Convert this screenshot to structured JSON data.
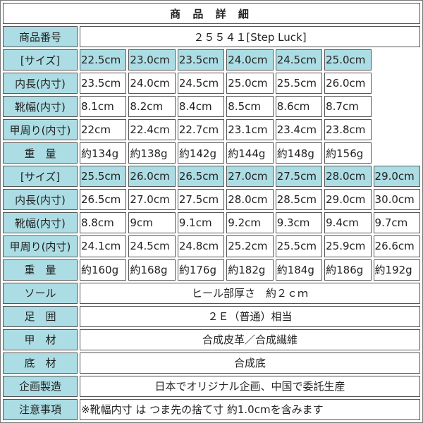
{
  "title": "商 品 詳 細",
  "product_number": {
    "label": "商品番号",
    "value": "２５５４１[Step Luck]"
  },
  "colors": {
    "header_bg": "#acdde4",
    "border": "#555555"
  },
  "size_blocks": [
    {
      "rows": [
        {
          "label": "[サイズ]",
          "type": "size",
          "values": [
            "22.5cm",
            "23.0cm",
            "23.5cm",
            "24.0cm",
            "24.5cm",
            "25.0cm"
          ]
        },
        {
          "label": "内長(内寸)",
          "values": [
            "23.5cm",
            "24.0cm",
            "24.5cm",
            "25.0cm",
            "25.5cm",
            "26.0cm"
          ]
        },
        {
          "label": "靴幅(内寸)",
          "values": [
            "8.1cm",
            "8.2cm",
            "8.4cm",
            "8.5cm",
            "8.6cm",
            "8.7cm"
          ]
        },
        {
          "label": "甲周り(内寸)",
          "values": [
            "22cm",
            "22.4cm",
            "22.7cm",
            "23.1cm",
            "23.4cm",
            "23.8cm"
          ]
        },
        {
          "label": "重　量",
          "values": [
            "約134g",
            "約138g",
            "約142g",
            "約144g",
            "約148g",
            "約156g"
          ]
        }
      ]
    },
    {
      "rows": [
        {
          "label": "[サイズ]",
          "type": "size",
          "values": [
            "25.5cm",
            "26.0cm",
            "26.5cm",
            "27.0cm",
            "27.5cm",
            "28.0cm",
            "29.0cm"
          ]
        },
        {
          "label": "内長(内寸)",
          "values": [
            "26.5cm",
            "27.0cm",
            "27.5cm",
            "28.0cm",
            "28.5cm",
            "29.0cm",
            "30.0cm"
          ]
        },
        {
          "label": "靴幅(内寸)",
          "values": [
            "8.8cm",
            "9cm",
            "9.1cm",
            "9.2cm",
            "9.3cm",
            "9.4cm",
            "9.7cm"
          ]
        },
        {
          "label": "甲周り(内寸)",
          "values": [
            "24.1cm",
            "24.5cm",
            "24.8cm",
            "25.2cm",
            "25.5cm",
            "25.9cm",
            "26.6cm"
          ]
        },
        {
          "label": "重　量",
          "values": [
            "約160g",
            "約168g",
            "約176g",
            "約182g",
            "約184g",
            "約186g",
            "約192g"
          ]
        }
      ]
    }
  ],
  "details": [
    {
      "label": "ソール",
      "value": "ヒール部厚さ　約２ｃｍ",
      "align": "center"
    },
    {
      "label": "足　囲",
      "value": "２Ｅ（普通）相当",
      "align": "center"
    },
    {
      "label": "甲　材",
      "value": "合成皮革／合成繊維",
      "align": "center"
    },
    {
      "label": "底　材",
      "value": "合成底",
      "align": "center"
    },
    {
      "label": "企画製造",
      "value": "日本でオリジナル企画、中国で委託生産",
      "align": "center"
    },
    {
      "label": "注意事項",
      "value": "※靴幅内寸 は つま先の捨て寸 約1.0cmを含みます",
      "align": "left"
    }
  ]
}
